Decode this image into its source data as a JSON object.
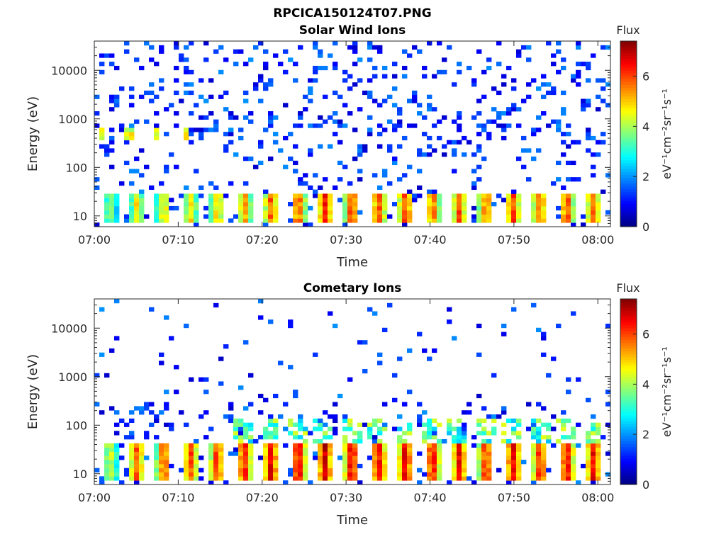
{
  "figure": {
    "filename": "RPCICA150124T07.PNG"
  },
  "chart_data": [
    {
      "type": "heatmap",
      "title": "Solar Wind Ions",
      "xlabel": "Time",
      "ylabel": "Energy (eV)",
      "x_ticks": [
        "07:00",
        "07:10",
        "07:20",
        "07:30",
        "07:40",
        "07:50",
        "08:00"
      ],
      "x_range_minutes": [
        0,
        61.5
      ],
      "y_scale": "log",
      "y_ticks": [
        "10",
        "100",
        "1000",
        "10000"
      ],
      "y_range": [
        6,
        40000
      ],
      "colorbar": {
        "title": "Flux",
        "label": "eV⁻¹cm⁻²sr⁻¹s⁻¹",
        "ticks": [
          "0",
          "2",
          "4",
          "6"
        ],
        "range": [
          0,
          7.4
        ],
        "colormap": "jet"
      },
      "sweep_period_minutes": 3.25,
      "sweep_start_minutes": [
        0,
        3.2,
        6.4,
        9.6,
        12.8,
        16.0,
        19.2,
        22.4,
        25.6,
        28.8,
        32.0,
        35.2,
        38.4,
        41.6,
        44.8,
        48.0,
        51.2,
        54.4,
        57.6,
        60.8
      ],
      "low_energy_band_eV": [
        8,
        28
      ],
      "low_energy_peak_flux": [
        4.0,
        4.8,
        5.0,
        5.0,
        5.2,
        5.5,
        6.0,
        6.2,
        6.4,
        6.4,
        6.2,
        6.3,
        6.0,
        6.0,
        6.0,
        6.2,
        6.0,
        6.2,
        6.0,
        6.0
      ],
      "mid_band": {
        "energy_eV": [
          400,
          700
        ],
        "peak_flux": 5.0,
        "occurs_at_minutes": [
          0.8,
          4.0,
          7.5,
          10.8
        ]
      },
      "background_flux": [
        0.5,
        2.0
      ]
    },
    {
      "type": "heatmap",
      "title": "Cometary Ions",
      "xlabel": "Time",
      "ylabel": "Energy (eV)",
      "x_ticks": [
        "07:00",
        "07:10",
        "07:20",
        "07:30",
        "07:40",
        "07:50",
        "08:00"
      ],
      "x_range_minutes": [
        0,
        61.5
      ],
      "y_scale": "log",
      "y_ticks": [
        "10",
        "100",
        "1000",
        "10000"
      ],
      "y_range": [
        6,
        40000
      ],
      "colorbar": {
        "title": "Flux",
        "label": "eV⁻¹cm⁻²sr⁻¹s⁻¹",
        "ticks": [
          "0",
          "2",
          "4",
          "6"
        ],
        "range": [
          0,
          7.4
        ],
        "colormap": "jet"
      },
      "sweep_period_minutes": 3.25,
      "sweep_start_minutes": [
        0,
        3.2,
        6.4,
        9.6,
        12.8,
        16.0,
        19.2,
        22.4,
        25.6,
        28.8,
        32.0,
        35.2,
        38.4,
        41.6,
        44.8,
        48.0,
        51.2,
        54.4,
        57.6,
        60.8
      ],
      "low_energy_band_eV": [
        7,
        40
      ],
      "low_energy_peak_flux": [
        4.5,
        6.0,
        6.2,
        6.0,
        6.4,
        6.6,
        6.8,
        7.0,
        7.0,
        7.0,
        6.8,
        6.8,
        6.8,
        6.6,
        6.6,
        6.8,
        6.6,
        6.8,
        6.6,
        6.6
      ],
      "mid_band": {
        "energy_eV": [
          40,
          150
        ],
        "peak_flux": 4.5,
        "occurs_after_minutes": 16
      },
      "background_flux": [
        0.5,
        2.0
      ]
    }
  ]
}
